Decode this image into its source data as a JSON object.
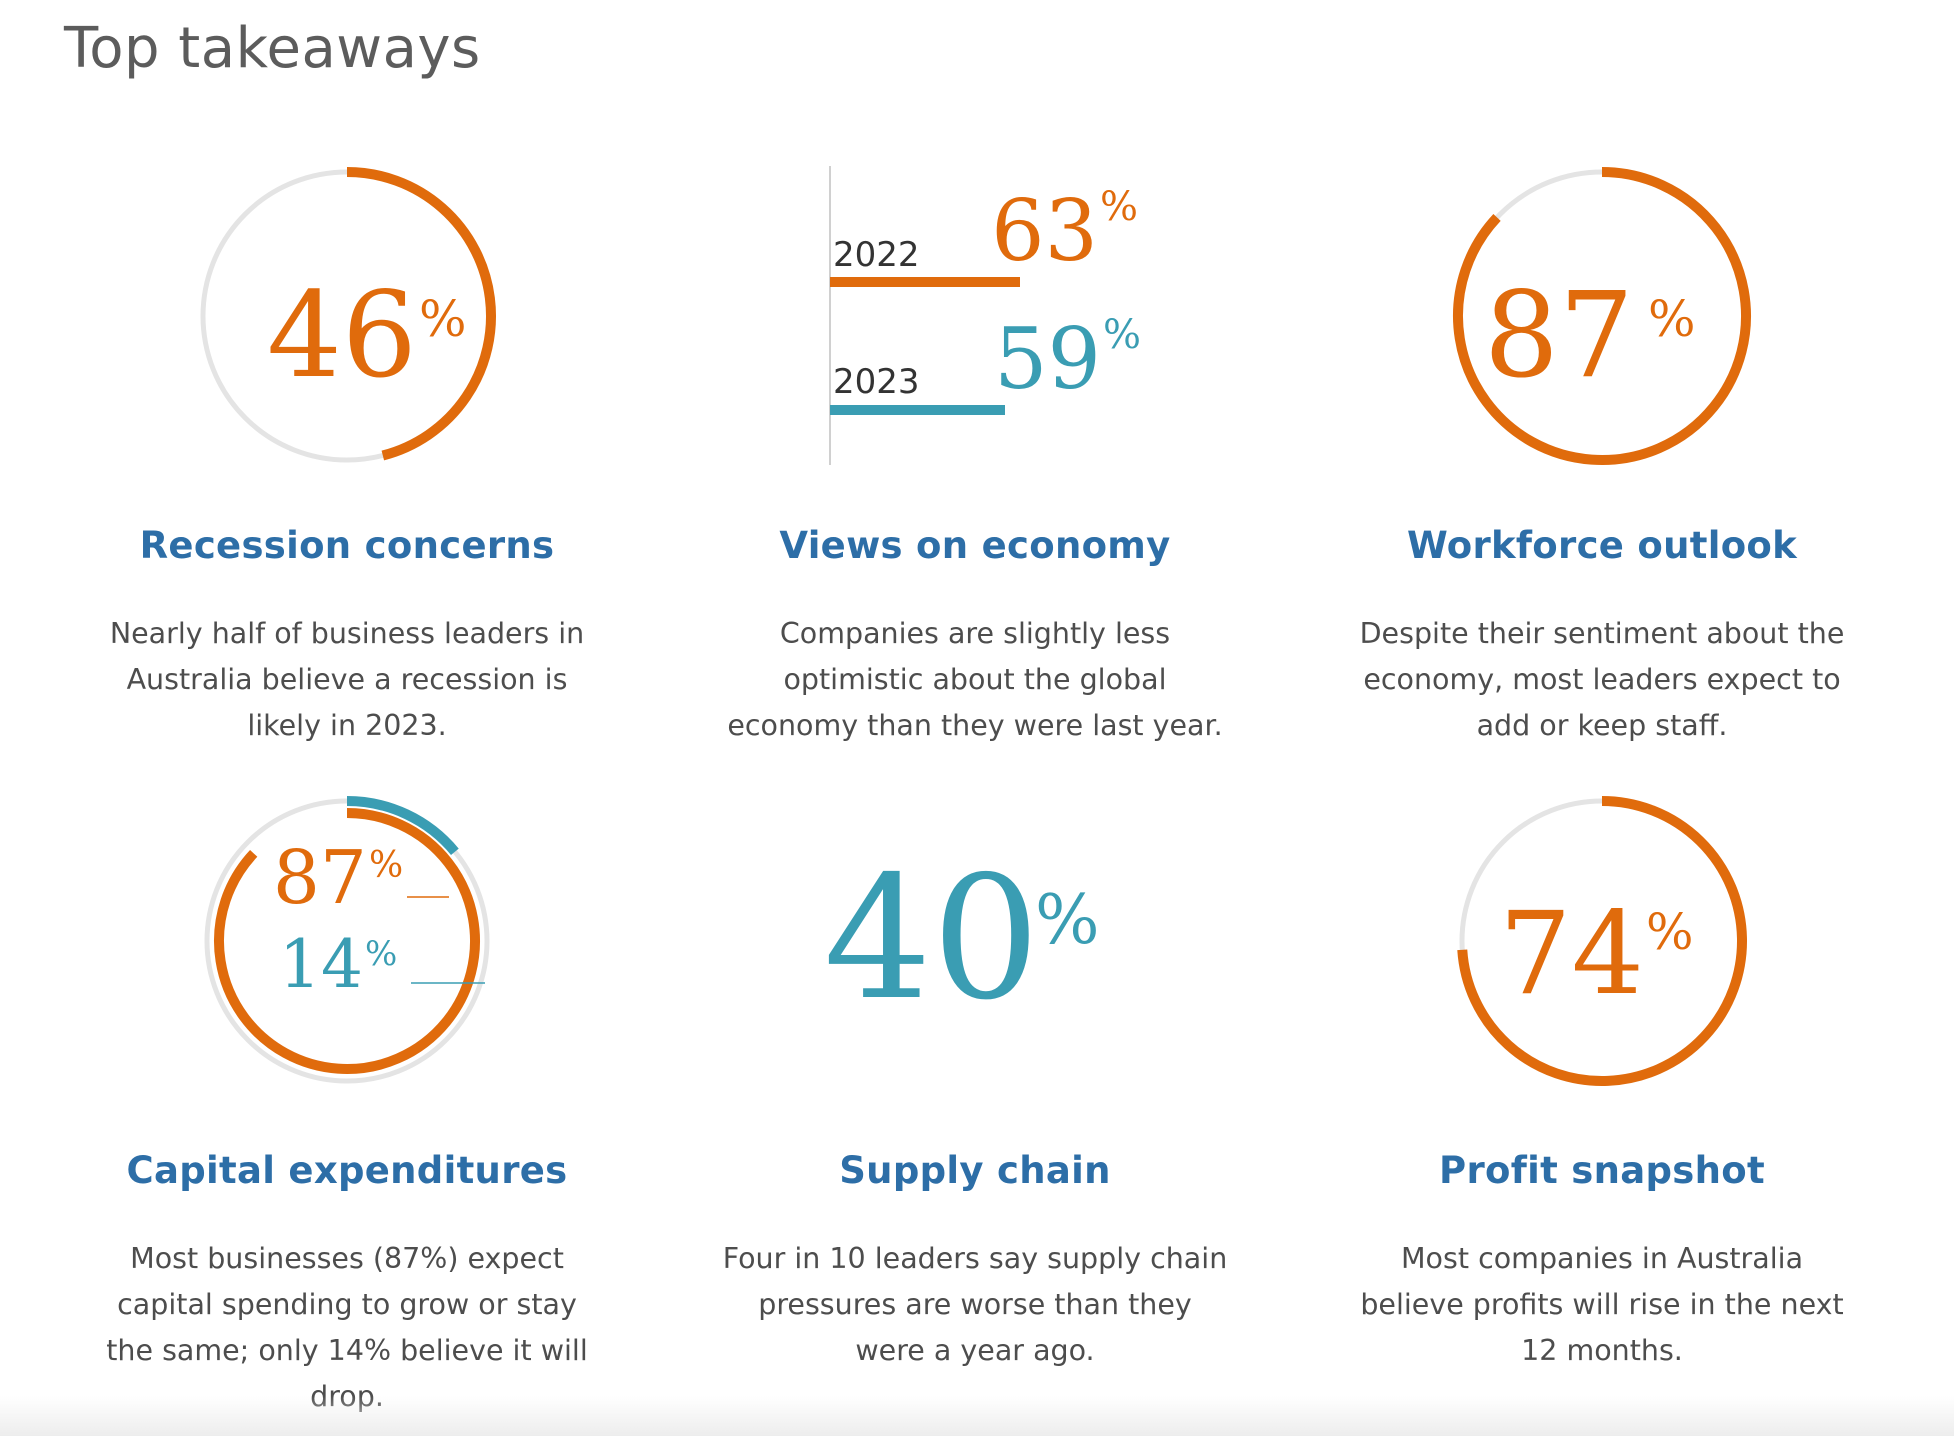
{
  "title": "Top takeaways",
  "colors": {
    "orange": "#e06b0c",
    "teal": "#3a9db3",
    "track": "#e4e4e4",
    "heading": "#2d6ea7"
  },
  "cards": [
    {
      "stat": "46",
      "pct": "%",
      "fraction": 0.46,
      "heading": "Recession concerns",
      "desc": "Nearly half of business leaders in Australia believe a recession is likely in 2023."
    },
    {
      "bars": [
        {
          "year": "2022",
          "value": "63",
          "pct": "%"
        },
        {
          "year": "2023",
          "value": "59",
          "pct": "%"
        }
      ],
      "heading": "Views on economy",
      "desc": "Companies are slightly less optimistic about the global economy than they were last year."
    },
    {
      "stat": "87",
      "pct": "%",
      "fraction": 0.87,
      "heading": "Workforce outlook",
      "desc": "Despite their sentiment about the economy, most leaders expect to add or keep staff."
    },
    {
      "stats": [
        {
          "value": "87",
          "pct": "%",
          "fraction": 0.87
        },
        {
          "value": "14",
          "pct": "%",
          "fraction": 0.14
        }
      ],
      "heading": "Capital expenditures",
      "desc": "Most businesses (87%) expect capital spending to grow or stay the same; only 14% believe it will drop."
    },
    {
      "stat": "40",
      "pct": "%",
      "heading": "Supply chain",
      "desc": "Four in 10 leaders say supply chain pressures are worse than they were a year ago."
    },
    {
      "stat": "74",
      "pct": "%",
      "fraction": 0.74,
      "heading": "Profit snapshot",
      "desc": "Most companies in Australia believe profits will rise in the next 12 months."
    }
  ]
}
